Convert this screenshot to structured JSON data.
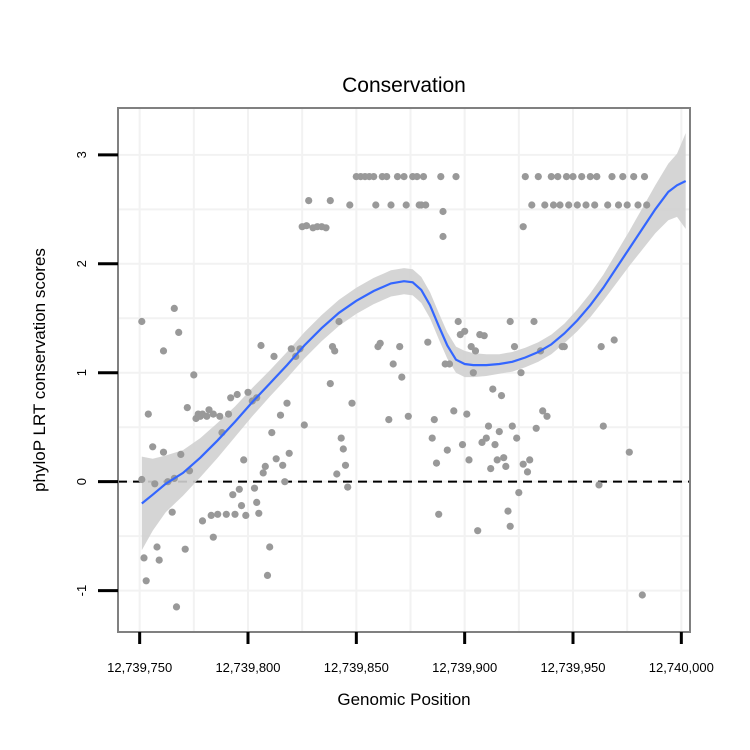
{
  "chart_data": {
    "type": "scatter",
    "title": "Conservation",
    "xlabel": "Genomic Position",
    "ylabel": "phyloP LRT conservation scores",
    "xlim": [
      12739740,
      12740004
    ],
    "ylim": [
      -1.38,
      3.43
    ],
    "grid": true,
    "x_ticks": [
      12739750,
      12739800,
      12739850,
      12739900,
      12739950,
      12740000
    ],
    "x_tick_labels": [
      "12,739,750",
      "12,739,800",
      "12,739,850",
      "12,739,900",
      "12,739,950",
      "12,740,000"
    ],
    "y_ticks": [
      -1,
      0,
      1,
      2,
      3
    ],
    "y_tick_labels": [
      "-1",
      "0",
      "1",
      "2",
      "3"
    ],
    "reference_line": {
      "y": 0,
      "style": "dashed",
      "color": "#000000"
    },
    "colors": {
      "points": "#999999",
      "smooth": "#3366ff",
      "band": "#d0d0d0",
      "panel_border": "#808080",
      "grid": "#f2f2f2"
    },
    "points": [
      [
        12739751,
        1.47
      ],
      [
        12739751,
        0.02
      ],
      [
        12739752,
        -0.7
      ],
      [
        12739753,
        -0.91
      ],
      [
        12739754,
        0.62
      ],
      [
        12739756,
        0.32
      ],
      [
        12739757,
        -0.02
      ],
      [
        12739758,
        -0.6
      ],
      [
        12739759,
        -0.72
      ],
      [
        12739761,
        1.2
      ],
      [
        12739761,
        0.27
      ],
      [
        12739763,
        0.0
      ],
      [
        12739765,
        -0.28
      ],
      [
        12739766,
        1.59
      ],
      [
        12739766,
        0.03
      ],
      [
        12739767,
        -1.15
      ],
      [
        12739768,
        1.37
      ],
      [
        12739769,
        0.25
      ],
      [
        12739771,
        -0.62
      ],
      [
        12739772,
        0.68
      ],
      [
        12739773,
        0.1
      ],
      [
        12739775,
        0.98
      ],
      [
        12739776,
        0.58
      ],
      [
        12739777,
        0.62
      ],
      [
        12739778,
        0.6
      ],
      [
        12739779,
        -0.36
      ],
      [
        12739779,
        0.62
      ],
      [
        12739781,
        0.6
      ],
      [
        12739782,
        0.66
      ],
      [
        12739783,
        -0.31
      ],
      [
        12739784,
        -0.51
      ],
      [
        12739784,
        0.62
      ],
      [
        12739786,
        -0.3
      ],
      [
        12739787,
        0.6
      ],
      [
        12739788,
        0.45
      ],
      [
        12739790,
        -0.3
      ],
      [
        12739791,
        0.62
      ],
      [
        12739792,
        0.77
      ],
      [
        12739793,
        -0.12
      ],
      [
        12739794,
        -0.3
      ],
      [
        12739795,
        0.8
      ],
      [
        12739796,
        -0.07
      ],
      [
        12739797,
        -0.22
      ],
      [
        12739798,
        0.2
      ],
      [
        12739799,
        -0.31
      ],
      [
        12739800,
        0.82
      ],
      [
        12739802,
        0.74
      ],
      [
        12739803,
        -0.06
      ],
      [
        12739804,
        -0.19
      ],
      [
        12739804,
        0.77
      ],
      [
        12739805,
        -0.29
      ],
      [
        12739806,
        1.25
      ],
      [
        12739807,
        0.08
      ],
      [
        12739808,
        0.14
      ],
      [
        12739809,
        -0.86
      ],
      [
        12739810,
        -0.6
      ],
      [
        12739811,
        0.45
      ],
      [
        12739812,
        1.15
      ],
      [
        12739813,
        0.21
      ],
      [
        12739815,
        0.61
      ],
      [
        12739816,
        0.15
      ],
      [
        12739817,
        0.0
      ],
      [
        12739818,
        0.72
      ],
      [
        12739819,
        0.26
      ],
      [
        12739820,
        1.22
      ],
      [
        12739822,
        1.15
      ],
      [
        12739824,
        1.22
      ],
      [
        12739825,
        2.34
      ],
      [
        12739826,
        0.52
      ],
      [
        12739827,
        2.35
      ],
      [
        12739828,
        2.58
      ],
      [
        12739830,
        2.33
      ],
      [
        12739832,
        2.34
      ],
      [
        12739834,
        2.34
      ],
      [
        12739836,
        2.33
      ],
      [
        12739838,
        0.9
      ],
      [
        12739838,
        2.58
      ],
      [
        12739839,
        1.24
      ],
      [
        12739840,
        1.2
      ],
      [
        12739841,
        0.07
      ],
      [
        12739842,
        1.47
      ],
      [
        12739843,
        0.4
      ],
      [
        12739844,
        0.3
      ],
      [
        12739845,
        0.15
      ],
      [
        12739846,
        -0.05
      ],
      [
        12739847,
        2.54
      ],
      [
        12739848,
        0.72
      ],
      [
        12739850,
        2.8
      ],
      [
        12739852,
        2.8
      ],
      [
        12739854,
        2.8
      ],
      [
        12739856,
        2.8
      ],
      [
        12739858,
        2.8
      ],
      [
        12739859,
        2.54
      ],
      [
        12739860,
        1.24
      ],
      [
        12739861,
        1.27
      ],
      [
        12739862,
        2.8
      ],
      [
        12739864,
        2.8
      ],
      [
        12739865,
        0.57
      ],
      [
        12739866,
        2.54
      ],
      [
        12739867,
        1.08
      ],
      [
        12739869,
        2.8
      ],
      [
        12739870,
        1.24
      ],
      [
        12739871,
        0.96
      ],
      [
        12739872,
        2.8
      ],
      [
        12739873,
        2.54
      ],
      [
        12739874,
        0.6
      ],
      [
        12739876,
        2.8
      ],
      [
        12739878,
        2.8
      ],
      [
        12739879,
        2.54
      ],
      [
        12739880,
        2.54
      ],
      [
        12739881,
        2.8
      ],
      [
        12739882,
        2.54
      ],
      [
        12739883,
        1.28
      ],
      [
        12739885,
        0.4
      ],
      [
        12739886,
        0.57
      ],
      [
        12739887,
        0.17
      ],
      [
        12739888,
        -0.3
      ],
      [
        12739889,
        2.8
      ],
      [
        12739890,
        2.48
      ],
      [
        12739890,
        2.25
      ],
      [
        12739891,
        1.08
      ],
      [
        12739892,
        0.29
      ],
      [
        12739893,
        1.08
      ],
      [
        12739895,
        0.65
      ],
      [
        12739896,
        2.8
      ],
      [
        12739897,
        1.47
      ],
      [
        12739898,
        1.35
      ],
      [
        12739899,
        0.34
      ],
      [
        12739900,
        1.38
      ],
      [
        12739901,
        0.62
      ],
      [
        12739902,
        0.2
      ],
      [
        12739903,
        1.24
      ],
      [
        12739904,
        1.0
      ],
      [
        12739905,
        1.2
      ],
      [
        12739906,
        -0.45
      ],
      [
        12739907,
        1.35
      ],
      [
        12739908,
        0.36
      ],
      [
        12739909,
        1.34
      ],
      [
        12739910,
        0.4
      ],
      [
        12739911,
        0.51
      ],
      [
        12739912,
        0.12
      ],
      [
        12739913,
        0.85
      ],
      [
        12739914,
        0.34
      ],
      [
        12739915,
        0.2
      ],
      [
        12739916,
        0.46
      ],
      [
        12739917,
        0.79
      ],
      [
        12739918,
        0.22
      ],
      [
        12739919,
        0.14
      ],
      [
        12739920,
        -0.27
      ],
      [
        12739921,
        1.47
      ],
      [
        12739921,
        -0.41
      ],
      [
        12739922,
        0.51
      ],
      [
        12739923,
        1.24
      ],
      [
        12739924,
        0.4
      ],
      [
        12739925,
        -0.1
      ],
      [
        12739926,
        1.0
      ],
      [
        12739927,
        2.34
      ],
      [
        12739927,
        0.16
      ],
      [
        12739928,
        2.8
      ],
      [
        12739929,
        0.09
      ],
      [
        12739930,
        0.2
      ],
      [
        12739931,
        2.54
      ],
      [
        12739932,
        1.47
      ],
      [
        12739933,
        0.49
      ],
      [
        12739934,
        2.8
      ],
      [
        12739935,
        1.2
      ],
      [
        12739936,
        0.65
      ],
      [
        12739937,
        2.54
      ],
      [
        12739938,
        0.6
      ],
      [
        12739940,
        2.8
      ],
      [
        12739941,
        2.54
      ],
      [
        12739943,
        2.8
      ],
      [
        12739944,
        2.54
      ],
      [
        12739945,
        1.24
      ],
      [
        12739946,
        1.24
      ],
      [
        12739947,
        2.8
      ],
      [
        12739948,
        2.54
      ],
      [
        12739950,
        2.8
      ],
      [
        12739952,
        2.54
      ],
      [
        12739954,
        2.8
      ],
      [
        12739956,
        2.54
      ],
      [
        12739958,
        2.8
      ],
      [
        12739960,
        2.54
      ],
      [
        12739961,
        2.8
      ],
      [
        12739962,
        -0.03
      ],
      [
        12739963,
        1.24
      ],
      [
        12739964,
        0.51
      ],
      [
        12739966,
        2.54
      ],
      [
        12739968,
        2.8
      ],
      [
        12739969,
        1.3
      ],
      [
        12739971,
        2.54
      ],
      [
        12739973,
        2.8
      ],
      [
        12739975,
        2.54
      ],
      [
        12739976,
        0.27
      ],
      [
        12739978,
        2.8
      ],
      [
        12739980,
        2.54
      ],
      [
        12739982,
        -1.04
      ],
      [
        12739983,
        2.8
      ],
      [
        12739984,
        2.54
      ]
    ],
    "smooth_x": [
      12739751,
      12739756,
      12739762,
      12739770,
      12739778,
      12739786,
      12739794,
      12739802,
      12739810,
      12739818,
      12739826,
      12739834,
      12739842,
      12739850,
      12739858,
      12739866,
      12739872,
      12739876,
      12739880,
      12739884,
      12739888,
      12739892,
      12739896,
      12739900,
      12739904,
      12739910,
      12739916,
      12739922,
      12739928,
      12739934,
      12739940,
      12739946,
      12739952,
      12739958,
      12739964,
      12739970,
      12739976,
      12739982,
      12739988,
      12739994,
      12739998,
      12740002
    ],
    "smooth_y": [
      -0.2,
      -0.12,
      -0.02,
      0.08,
      0.22,
      0.38,
      0.55,
      0.73,
      0.9,
      1.07,
      1.25,
      1.41,
      1.55,
      1.66,
      1.75,
      1.82,
      1.84,
      1.83,
      1.76,
      1.62,
      1.43,
      1.25,
      1.12,
      1.08,
      1.07,
      1.07,
      1.08,
      1.1,
      1.14,
      1.19,
      1.26,
      1.36,
      1.48,
      1.62,
      1.78,
      1.96,
      2.14,
      2.32,
      2.5,
      2.66,
      2.72,
      2.76
    ],
    "smooth_lower": [
      -0.63,
      -0.45,
      -0.28,
      -0.13,
      0.04,
      0.22,
      0.41,
      0.6,
      0.78,
      0.95,
      1.13,
      1.29,
      1.43,
      1.54,
      1.63,
      1.7,
      1.72,
      1.71,
      1.64,
      1.5,
      1.31,
      1.13,
      1.0,
      0.96,
      0.96,
      0.97,
      0.99,
      1.01,
      1.05,
      1.1,
      1.17,
      1.27,
      1.38,
      1.51,
      1.66,
      1.82,
      1.98,
      2.13,
      2.28,
      2.4,
      2.43,
      2.32
    ],
    "smooth_upper": [
      0.23,
      0.21,
      0.24,
      0.29,
      0.4,
      0.54,
      0.69,
      0.86,
      1.02,
      1.19,
      1.37,
      1.53,
      1.67,
      1.78,
      1.87,
      1.94,
      1.96,
      1.95,
      1.88,
      1.74,
      1.55,
      1.37,
      1.24,
      1.2,
      1.18,
      1.17,
      1.17,
      1.19,
      1.23,
      1.28,
      1.35,
      1.45,
      1.58,
      1.73,
      1.9,
      2.1,
      2.3,
      2.51,
      2.72,
      2.92,
      3.01,
      3.2
    ]
  }
}
